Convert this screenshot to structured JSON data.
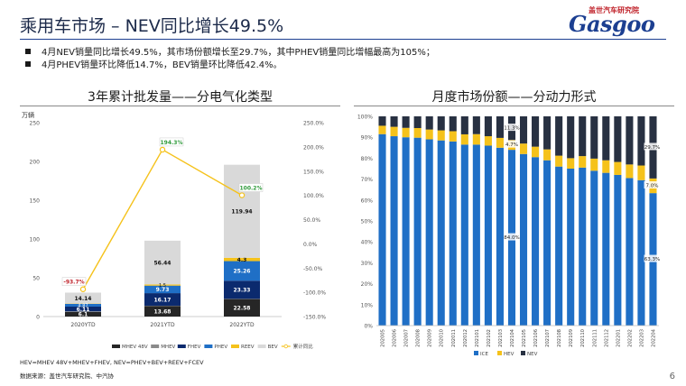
{
  "header": {
    "title": "乘用车市场 – NEV同比增长49.5%"
  },
  "logo": {
    "cn": "盖世汽车研究院",
    "mark": "Gasgoo"
  },
  "bullets": [
    "4月NEV销量同比增长49.5%，其市场份额增长至29.7%，其中PHEV销量同比增幅最高为105%；",
    "4月PHEV销量环比降低14.7%，BEV销量环比降低42.4%。"
  ],
  "left_panel": {
    "title": "3年累计批发量——分电气化类型",
    "unit": "万辆"
  },
  "right_panel": {
    "title": "月度市场份额——分动力形式"
  },
  "footnote": "HEV=MHEV 48V+MHEV+FHEV, NEV=PHEV+BEV+REEV+FCEV",
  "source": "数据来源：盖世汽车研究院、中汽协",
  "page_number": "6",
  "colors": {
    "brand": "#1c3f91",
    "accent_red": "#c0232b"
  },
  "chart_data": [
    {
      "type": "bar",
      "stacked": true,
      "title": "3年累计批发量——分电气化类型",
      "ylabel": "万辆",
      "ylim": [
        0,
        250
      ],
      "y_ticks": [
        "0",
        "50",
        "100",
        "150",
        "200",
        "250"
      ],
      "y2lim": [
        -150,
        250
      ],
      "y2_ticks": [
        "-150.0%",
        "-100.0%",
        "-50.0%",
        "0.0%",
        "50.0%",
        "100.0%",
        "150.0%",
        "200.0%",
        "250.0%"
      ],
      "categories": [
        "2020YTD",
        "2021YTD",
        "2022YTD"
      ],
      "series": [
        {
          "name": "MHEV 48V",
          "color": "#262626",
          "values": [
            6.1,
            13.68,
            22.58
          ],
          "labels": [
            "6.1",
            "13.68",
            "22.58"
          ]
        },
        {
          "name": "MHEV",
          "color": "#8a8a8a",
          "values": [
            0.6,
            0.3,
            0.3
          ],
          "labels": [
            "",
            "",
            ""
          ]
        },
        {
          "name": "FHEV",
          "color": "#0b2a6e",
          "values": [
            6.11,
            16.17,
            23.33
          ],
          "labels": [
            "6.11",
            "16.17",
            "23.33"
          ]
        },
        {
          "name": "PHEV",
          "color": "#1f6fc6",
          "values": [
            3.5,
            9.73,
            25.26
          ],
          "labels": [
            "",
            "9.73",
            "25.26"
          ]
        },
        {
          "name": "REEV",
          "color": "#f5c21b",
          "values": [
            0.4,
            1.5,
            4.3
          ],
          "labels": [
            "",
            "",
            "4.3"
          ]
        },
        {
          "name": "BEV",
          "color": "#d9d9d9",
          "values": [
            14.14,
            56.44,
            119.94
          ],
          "labels": [
            "14.14",
            "56.44",
            "119.94"
          ]
        }
      ],
      "extra_labels": [
        "4.87",
        "1.5"
      ],
      "line": {
        "name": "累计同比",
        "color": "#f5c21b",
        "axis": "secondary",
        "values": [
          -93.7,
          194.3,
          100.2
        ],
        "labels": [
          "-93.7%",
          "194.3%",
          "100.2%"
        ],
        "label_colors": [
          "#c0232b",
          "#2e9a3a",
          "#2e9a3a"
        ]
      },
      "legend": "bottom"
    },
    {
      "type": "bar",
      "stacked": true,
      "percent": true,
      "title": "月度市场份额——分动力形式",
      "ylim": [
        0,
        100
      ],
      "y_ticks": [
        "0%",
        "10%",
        "20%",
        "30%",
        "40%",
        "50%",
        "60%",
        "70%",
        "80%",
        "90%",
        "100%"
      ],
      "categories": [
        "202005",
        "202006",
        "202007",
        "202008",
        "202009",
        "202010",
        "202011",
        "202012",
        "202101",
        "202102",
        "202103",
        "202104",
        "202105",
        "202106",
        "202107",
        "202108",
        "202109",
        "202110",
        "202111",
        "202112",
        "202201",
        "202202",
        "202203",
        "202204"
      ],
      "series": [
        {
          "name": "ICE",
          "color": "#1f6fc6",
          "values": [
            91.5,
            90.5,
            90.0,
            89.8,
            89.0,
            88.5,
            88.0,
            86.5,
            86.5,
            86.0,
            85.0,
            84.0,
            82.0,
            80.5,
            79.0,
            76.0,
            75.0,
            75.5,
            74.0,
            73.0,
            72.0,
            70.5,
            69.5,
            63.3
          ]
        },
        {
          "name": "HEV",
          "color": "#f5c21b",
          "values": [
            4.0,
            4.5,
            4.5,
            4.6,
            4.7,
            4.8,
            4.9,
            4.9,
            5.0,
            4.5,
            4.7,
            4.7,
            5.0,
            5.0,
            5.2,
            5.2,
            5.0,
            5.5,
            5.8,
            6.0,
            6.2,
            6.5,
            7.0,
            7.0
          ]
        },
        {
          "name": "NEV",
          "color": "#283142",
          "values": [
            4.5,
            5.0,
            5.5,
            5.6,
            6.3,
            6.7,
            7.1,
            8.6,
            8.5,
            9.5,
            10.3,
            11.3,
            13.0,
            14.5,
            15.8,
            18.8,
            20.0,
            19.0,
            20.2,
            21.0,
            21.8,
            23.0,
            23.5,
            29.7
          ]
        }
      ],
      "annotations": [
        {
          "category": "202104",
          "series": "NEV",
          "label": "11.3%"
        },
        {
          "category": "202104",
          "series": "HEV",
          "label": "4.7%"
        },
        {
          "category": "202104",
          "series": "ICE",
          "label": "84.0%"
        },
        {
          "category": "202204",
          "series": "NEV",
          "label": "29.7%"
        },
        {
          "category": "202204",
          "series": "HEV",
          "label": "7.0%"
        },
        {
          "category": "202204",
          "series": "ICE",
          "label": "63.3%"
        }
      ],
      "legend": "bottom"
    }
  ]
}
